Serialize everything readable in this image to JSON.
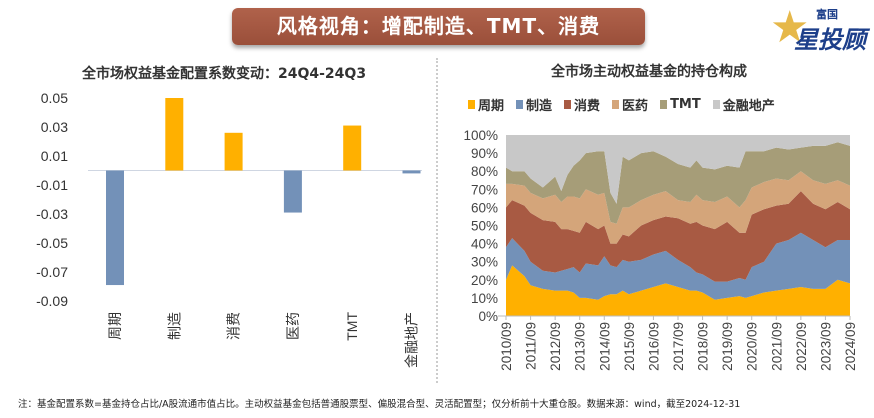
{
  "header": {
    "title": "风格视角：增配制造、TMT、消费",
    "logo_small": "富国",
    "logo_big": "星投顾"
  },
  "chart_data": [
    {
      "type": "bar",
      "title": "全市场权益基金配置系数变动：24Q4-24Q3",
      "categories": [
        "周期",
        "制造",
        "消费",
        "医药",
        "TMT",
        "金融地产"
      ],
      "values": [
        -0.079,
        0.05,
        0.026,
        -0.029,
        0.031,
        -0.002
      ],
      "ylim": [
        -0.09,
        0.05
      ],
      "yticks": [
        "0.05",
        "0.03",
        "0.01",
        "-0.01",
        "-0.03",
        "-0.05",
        "-0.07",
        "-0.09"
      ],
      "ytick_values": [
        0.05,
        0.03,
        0.01,
        -0.01,
        -0.03,
        -0.05,
        -0.07,
        -0.09
      ],
      "colors": {
        "positive": "#FFB000",
        "negative": "#7391B8"
      },
      "grid": false
    },
    {
      "type": "area",
      "stacked": true,
      "title": "全市场主动权益基金的持仓构成",
      "legend_position": "top",
      "ylim": [
        0,
        100
      ],
      "yticks": [
        "0%",
        "10%",
        "20%",
        "30%",
        "40%",
        "50%",
        "60%",
        "70%",
        "80%",
        "90%",
        "100%"
      ],
      "xticks": [
        "2010/09",
        "2011/09",
        "2012/09",
        "2013/09",
        "2014/09",
        "2015/09",
        "2016/09",
        "2017/09",
        "2018/09",
        "2019/09",
        "2020/09",
        "2021/09",
        "2022/09",
        "2023/09",
        "2024/09"
      ],
      "x": [
        "2010/09",
        "2010/12",
        "2011/06",
        "2011/09",
        "2012/03",
        "2012/09",
        "2012/12",
        "2013/03",
        "2013/06",
        "2013/09",
        "2013/12",
        "2014/06",
        "2014/09",
        "2014/12",
        "2015/03",
        "2015/06",
        "2015/09",
        "2016/03",
        "2016/09",
        "2017/03",
        "2017/09",
        "2018/03",
        "2018/06",
        "2018/09",
        "2019/03",
        "2019/09",
        "2020/03",
        "2020/06",
        "2020/09",
        "2021/03",
        "2021/09",
        "2022/03",
        "2022/09",
        "2023/03",
        "2023/09",
        "2024/03",
        "2024/09"
      ],
      "series": [
        {
          "name": "周期",
          "color": "#FFB000",
          "values": [
            20,
            28,
            22,
            17,
            15,
            14,
            14,
            14,
            13,
            10,
            10,
            9,
            11,
            12,
            12,
            14,
            12,
            14,
            16,
            18,
            16,
            14,
            14,
            13,
            9,
            10,
            11,
            10,
            11,
            13,
            14,
            15,
            16,
            15,
            15,
            20,
            18
          ]
        },
        {
          "name": "制造",
          "color": "#7391B8",
          "values": [
            18,
            15,
            14,
            13,
            10,
            10,
            11,
            12,
            14,
            14,
            19,
            19,
            22,
            16,
            15,
            17,
            18,
            17,
            18,
            18,
            15,
            13,
            10,
            10,
            10,
            9,
            10,
            10,
            16,
            17,
            26,
            27,
            30,
            27,
            23,
            22,
            24
          ]
        },
        {
          "name": "消费",
          "color": "#A85A43",
          "values": [
            22,
            21,
            25,
            27,
            28,
            28,
            23,
            22,
            20,
            22,
            23,
            20,
            17,
            12,
            13,
            14,
            14,
            19,
            19,
            19,
            23,
            24,
            28,
            27,
            29,
            33,
            25,
            26,
            29,
            29,
            21,
            20,
            23,
            20,
            21,
            21,
            17
          ]
        },
        {
          "name": "医药",
          "color": "#D4A57A",
          "values": [
            13,
            9,
            11,
            11,
            12,
            15,
            15,
            18,
            19,
            19,
            18,
            19,
            18,
            12,
            11,
            15,
            16,
            14,
            14,
            14,
            10,
            12,
            15,
            14,
            15,
            14,
            14,
            18,
            15,
            15,
            15,
            13,
            11,
            13,
            14,
            12,
            13
          ]
        },
        {
          "name": "TMT",
          "color": "#A69D78",
          "values": [
            9,
            7,
            8,
            8,
            6,
            10,
            6,
            12,
            17,
            21,
            20,
            24,
            23,
            16,
            11,
            28,
            26,
            26,
            24,
            19,
            20,
            19,
            19,
            18,
            18,
            17,
            22,
            27,
            20,
            17,
            17,
            17,
            13,
            19,
            21,
            21,
            22
          ]
        },
        {
          "name": "金融地产",
          "color": "#C8C8C8",
          "values": [
            18,
            20,
            20,
            24,
            29,
            23,
            31,
            22,
            17,
            14,
            10,
            9,
            9,
            32,
            38,
            12,
            14,
            10,
            9,
            12,
            16,
            18,
            14,
            18,
            19,
            17,
            18,
            9,
            9,
            9,
            7,
            8,
            7,
            6,
            6,
            4,
            6
          ]
        }
      ]
    }
  ],
  "footnote": "注：基金配置系数=基金持仓占比/A股流通市值占比。主动权益基金包括普通股票型、偏股混合型、灵活配置型；仅分析前十大重仓股。数据来源：wind，截至2024-12-31"
}
